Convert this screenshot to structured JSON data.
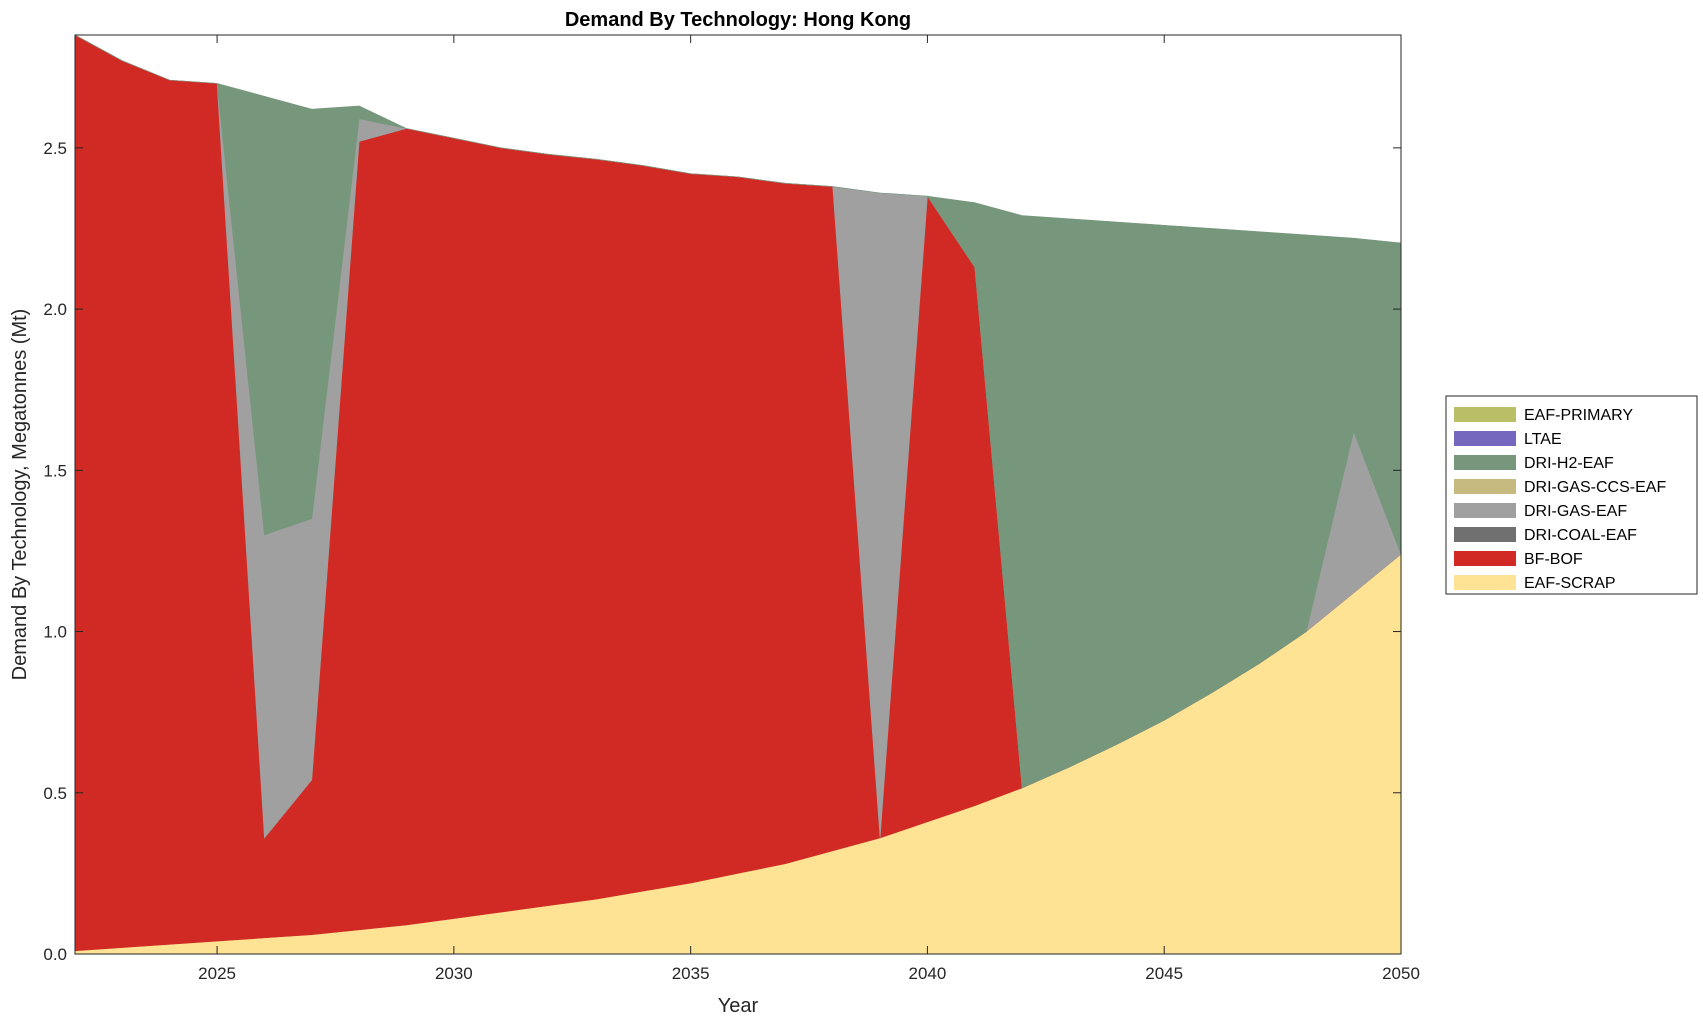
{
  "chart_data": {
    "type": "area",
    "title": "Demand By Technology: Hong Kong",
    "xlabel": "Year",
    "ylabel": "Demand By Technology, Megatonnes (Mt)",
    "xlim": [
      2022,
      2050
    ],
    "ylim": [
      0,
      2.85
    ],
    "xticks": [
      2025,
      2030,
      2035,
      2040,
      2045,
      2050
    ],
    "yticks": [
      0,
      0.5,
      1,
      1.5,
      2,
      2.5
    ],
    "ytick_labels": [
      "0.0",
      "0.5",
      "1.0",
      "1.5",
      "2.0",
      "2.5"
    ],
    "xtick_labels": [
      "2025",
      "2030",
      "2035",
      "2040",
      "2045",
      "2050"
    ],
    "grid": false,
    "stacked": true,
    "legend_position": "right",
    "x": [
      2022,
      2023,
      2024,
      2025,
      2026,
      2027,
      2028,
      2029,
      2030,
      2031,
      2032,
      2033,
      2034,
      2035,
      2036,
      2037,
      2038,
      2039,
      2040,
      2041,
      2042,
      2043,
      2044,
      2045,
      2046,
      2047,
      2048,
      2049,
      2050
    ],
    "series": [
      {
        "name": "EAF-SCRAP",
        "color": "#FDE393",
        "values": [
          0.01,
          0.02,
          0.03,
          0.04,
          0.05,
          0.06,
          0.075,
          0.09,
          0.11,
          0.13,
          0.15,
          0.17,
          0.195,
          0.22,
          0.25,
          0.28,
          0.32,
          0.36,
          0.41,
          0.46,
          0.515,
          0.58,
          0.65,
          0.725,
          0.81,
          0.9,
          1.0,
          1.12,
          1.24
        ]
      },
      {
        "name": "BF-BOF",
        "color": "#D12A24",
        "values": [
          2.84,
          2.75,
          2.68,
          2.66,
          0.31,
          0.48,
          2.445,
          2.47,
          2.42,
          2.37,
          2.33,
          2.295,
          2.25,
          2.2,
          2.16,
          2.11,
          2.06,
          0.0,
          1.94,
          1.67,
          0.0,
          0,
          0,
          0,
          0,
          0,
          0,
          0,
          0
        ]
      },
      {
        "name": "DRI-COAL-EAF",
        "color": "#707070",
        "values": [
          0,
          0,
          0,
          0,
          0,
          0,
          0,
          0,
          0,
          0,
          0,
          0,
          0,
          0,
          0,
          0,
          0,
          0,
          0,
          0,
          0,
          0,
          0,
          0,
          0,
          0,
          0,
          0,
          0
        ]
      },
      {
        "name": "DRI-GAS-EAF",
        "color": "#A0A0A0",
        "values": [
          0,
          0,
          0,
          0,
          0.94,
          0.81,
          0.07,
          0,
          0,
          0,
          0,
          0,
          0,
          0,
          0,
          0,
          0,
          2.0,
          0,
          0,
          0,
          0,
          0,
          0,
          0,
          0,
          0,
          0.5,
          0
        ]
      },
      {
        "name": "DRI-GAS-CCS-EAF",
        "color": "#C6BA7E",
        "values": [
          0,
          0,
          0,
          0,
          0,
          0,
          0,
          0,
          0,
          0,
          0,
          0,
          0,
          0,
          0,
          0,
          0,
          0,
          0,
          0,
          0,
          0,
          0,
          0,
          0,
          0,
          0,
          0,
          0
        ]
      },
      {
        "name": "DRI-H2-EAF",
        "color": "#76977C",
        "values": [
          0,
          0,
          0,
          0,
          1.36,
          1.27,
          0.04,
          0,
          0,
          0,
          0,
          0,
          0,
          0,
          0,
          0,
          0,
          0,
          0,
          0.2,
          1.775,
          1.7,
          1.62,
          1.535,
          1.44,
          1.34,
          1.23,
          0.6,
          0.965
        ]
      },
      {
        "name": "LTAE",
        "color": "#7567BD",
        "values": [
          0,
          0,
          0,
          0,
          0,
          0,
          0,
          0,
          0,
          0,
          0,
          0,
          0,
          0,
          0,
          0,
          0,
          0,
          0,
          0,
          0,
          0,
          0,
          0,
          0,
          0,
          0,
          0,
          0
        ]
      },
      {
        "name": "EAF-PRIMARY",
        "color": "#B8BF66",
        "values": [
          0,
          0,
          0,
          0,
          0,
          0,
          0,
          0,
          0,
          0,
          0,
          0,
          0,
          0,
          0,
          0,
          0,
          0,
          0,
          0,
          0,
          0,
          0,
          0,
          0,
          0,
          0,
          0,
          0
        ]
      }
    ],
    "legend": [
      "EAF-PRIMARY",
      "LTAE",
      "DRI-H2-EAF",
      "DRI-GAS-CCS-EAF",
      "DRI-GAS-EAF",
      "DRI-COAL-EAF",
      "BF-BOF",
      "EAF-SCRAP"
    ]
  }
}
